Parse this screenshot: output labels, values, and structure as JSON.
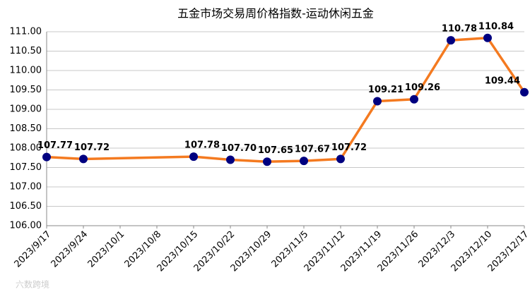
{
  "chart_data": {
    "type": "line",
    "title": "五金市场交易周价格指数-运动休闲五金",
    "x": [
      "2023/9/17",
      "2023/9/24",
      "2023/10/15",
      "2023/10/22",
      "2023/10/29",
      "2023/11/5",
      "2023/11/12",
      "2023/11/19",
      "2023/11/26",
      "2023/12/3",
      "2023/12/10",
      "2023/12/17"
    ],
    "values": [
      107.77,
      107.72,
      107.78,
      107.7,
      107.65,
      107.67,
      107.72,
      109.21,
      109.26,
      110.78,
      110.84,
      109.44
    ],
    "value_labels": [
      "107.77",
      "107.72",
      "107.78",
      "107.70",
      "107.65",
      "107.67",
      "107.72",
      "109.21",
      "109.26",
      "110.78",
      "110.84",
      "109.44"
    ],
    "color": "#f47a20",
    "marker_color": "#000080",
    "xlim": [
      "2023/9/17",
      "2023/12/17"
    ],
    "xticks": [
      "2023/9/17",
      "2023/9/24",
      "2023/10/1",
      "2023/10/8",
      "2023/10/15",
      "2023/10/22",
      "2023/10/29",
      "2023/11/5",
      "2023/11/12",
      "2023/11/19",
      "2023/11/26",
      "2023/12/3",
      "2023/12/10",
      "2023/12/17"
    ],
    "ylim": [
      106,
      111
    ],
    "yticks": [
      {
        "value": 106,
        "label": "106.00"
      },
      {
        "value": 106.5,
        "label": "106.50"
      },
      {
        "value": 107,
        "label": "107.00"
      },
      {
        "value": 107.5,
        "label": "107.50"
      },
      {
        "value": 108,
        "label": "108.00"
      },
      {
        "value": 108.5,
        "label": "108.50"
      },
      {
        "value": 109,
        "label": "109.00"
      },
      {
        "value": 109.5,
        "label": "109.50"
      },
      {
        "value": 110,
        "label": "110.00"
      },
      {
        "value": 110.5,
        "label": "110.50"
      },
      {
        "value": 111,
        "label": "111.00"
      }
    ],
    "grid": true,
    "watermark": "六数跨境"
  }
}
